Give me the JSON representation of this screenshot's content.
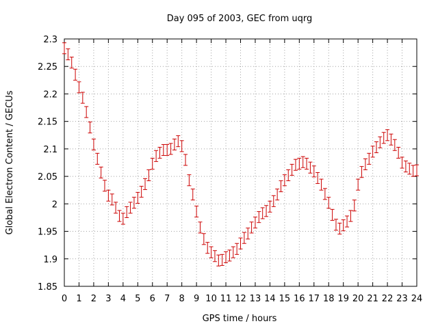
{
  "chart_data": {
    "type": "scatter",
    "title": "Day 095 of 2003, GEC from uqrg",
    "xlabel": "GPS time / hours",
    "ylabel": "Global Electron Content / GECUs",
    "xlim": [
      0,
      24
    ],
    "ylim": [
      1.85,
      2.3
    ],
    "xticks": [
      0,
      1,
      2,
      3,
      4,
      5,
      6,
      7,
      8,
      9,
      10,
      11,
      12,
      13,
      14,
      15,
      16,
      17,
      18,
      19,
      20,
      21,
      22,
      23,
      24
    ],
    "xtick_labels": [
      "0",
      "1",
      "2",
      "3",
      "4",
      "5",
      "6",
      "7",
      "8",
      "9",
      "10",
      "11",
      "12",
      "13",
      "14",
      "15",
      "16",
      "17",
      "18",
      "19",
      "20",
      "21",
      "22",
      "23",
      "24"
    ],
    "yticks": [
      1.85,
      1.9,
      1.95,
      2.0,
      2.05,
      2.1,
      2.15,
      2.2,
      2.25,
      2.3
    ],
    "ytick_labels": [
      "1.85",
      "1.9",
      "1.95",
      "2",
      "2.05",
      "2.1",
      "2.15",
      "2.2",
      "2.25",
      "2.3"
    ],
    "grid": true,
    "legend": "none",
    "marker": "errorbar",
    "color": "#cc0000",
    "error": 0.01,
    "series": [
      {
        "x": [
          0.0,
          0.25,
          0.5,
          0.75,
          1.0,
          1.25,
          1.5,
          1.75,
          2.0,
          2.25,
          2.5,
          2.75,
          3.0,
          3.25,
          3.5,
          3.75,
          4.0,
          4.25,
          4.5,
          4.75,
          5.0,
          5.25,
          5.5,
          5.75,
          6.0,
          6.25,
          6.5,
          6.75,
          7.0,
          7.25,
          7.5,
          7.75,
          8.0,
          8.25,
          8.5,
          8.75,
          9.0,
          9.25,
          9.5,
          9.75,
          10.0,
          10.25,
          10.5,
          10.75,
          11.0,
          11.25,
          11.5,
          11.75,
          12.0,
          12.25,
          12.5,
          12.75,
          13.0,
          13.25,
          13.5,
          13.75,
          14.0,
          14.25,
          14.5,
          14.75,
          15.0,
          15.25,
          15.5,
          15.75,
          16.0,
          16.25,
          16.5,
          16.75,
          17.0,
          17.25,
          17.5,
          17.75,
          18.0,
          18.25,
          18.5,
          18.75,
          19.0,
          19.25,
          19.5,
          19.75,
          20.0,
          20.25,
          20.5,
          20.75,
          21.0,
          21.25,
          21.5,
          21.75,
          22.0,
          22.25,
          22.5,
          22.75,
          23.0,
          23.25,
          23.5,
          23.75,
          24.0
        ],
        "y": [
          2.283,
          2.272,
          2.257,
          2.235,
          2.212,
          2.193,
          2.167,
          2.139,
          2.108,
          2.082,
          2.057,
          2.033,
          2.015,
          2.008,
          1.993,
          1.978,
          1.973,
          1.985,
          1.993,
          2.002,
          2.011,
          2.022,
          2.036,
          2.052,
          2.073,
          2.087,
          2.093,
          2.098,
          2.098,
          2.1,
          2.108,
          2.114,
          2.105,
          2.08,
          2.043,
          2.017,
          1.986,
          1.957,
          1.936,
          1.92,
          1.912,
          1.905,
          1.897,
          1.898,
          1.903,
          1.906,
          1.912,
          1.918,
          1.928,
          1.938,
          1.946,
          1.957,
          1.966,
          1.976,
          1.983,
          1.987,
          1.995,
          2.005,
          2.017,
          2.032,
          2.043,
          2.052,
          2.062,
          2.071,
          2.073,
          2.076,
          2.073,
          2.066,
          2.059,
          2.047,
          2.035,
          2.018,
          2.002,
          1.98,
          1.962,
          1.955,
          1.961,
          1.968,
          1.978,
          1.997,
          2.035,
          2.058,
          2.072,
          2.082,
          2.095,
          2.103,
          2.112,
          2.12,
          2.125,
          2.117,
          2.107,
          2.093,
          2.075,
          2.068,
          2.064,
          2.06,
          2.061
        ]
      }
    ]
  }
}
